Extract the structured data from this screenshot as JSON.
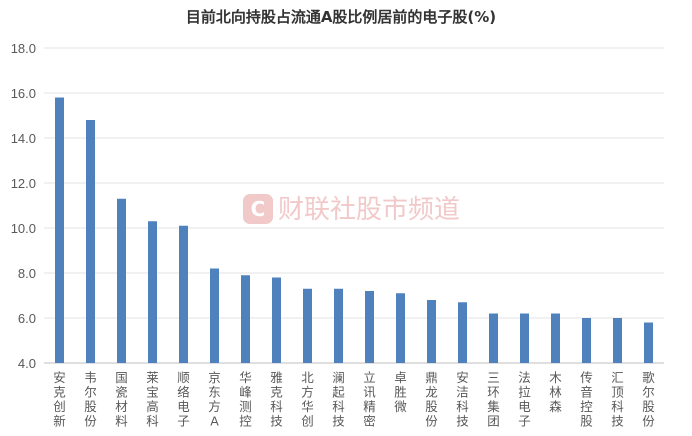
{
  "chart_data": {
    "type": "bar",
    "title": "目前北向持股占流通A股比例居前的电子股(%)",
    "xlabel": "",
    "ylabel": "",
    "ylim": [
      4.0,
      18.0
    ],
    "yticks": [
      "4.0",
      "6.0",
      "8.0",
      "10.0",
      "12.0",
      "14.0",
      "16.0",
      "18.0"
    ],
    "grid": true,
    "bar_color": "#4f81bd",
    "categories": [
      "安克创新",
      "韦尔股份",
      "国瓷材料",
      "莱宝高科",
      "顺络电子",
      "京东方A",
      "华峰测控",
      "雅克科技",
      "北方华创",
      "澜起科技",
      "立讯精密",
      "卓胜微",
      "鼎龙股份",
      "安洁科技",
      "三环集团",
      "法拉电子",
      "木林森",
      "传音控股",
      "汇顶科技",
      "歌尔股份"
    ],
    "values": [
      15.8,
      14.8,
      11.3,
      10.3,
      10.1,
      8.2,
      7.9,
      7.8,
      7.3,
      7.3,
      7.2,
      7.1,
      6.8,
      6.7,
      6.2,
      6.2,
      6.2,
      6.0,
      6.0,
      5.8
    ]
  },
  "watermark": {
    "text": "财联社股市频道",
    "color": "#f2c9c9"
  }
}
